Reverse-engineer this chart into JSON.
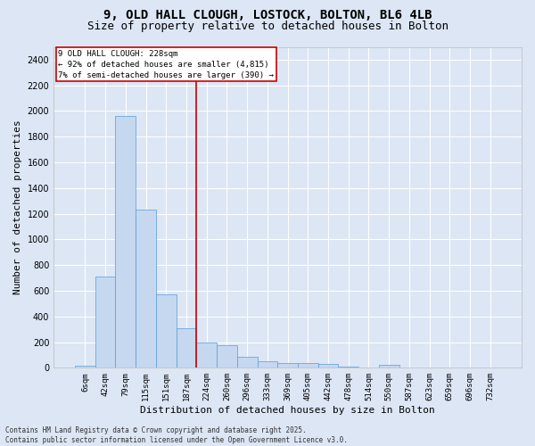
{
  "title_line1": "9, OLD HALL CLOUGH, LOSTOCK, BOLTON, BL6 4LB",
  "title_line2": "Size of property relative to detached houses in Bolton",
  "xlabel": "Distribution of detached houses by size in Bolton",
  "ylabel": "Number of detached properties",
  "bar_color": "#c5d8f0",
  "bar_edge_color": "#5b9bd5",
  "background_color": "#dce6f5",
  "grid_color": "#ffffff",
  "annotation_text": "9 OLD HALL CLOUGH: 228sqm\n← 92% of detached houses are smaller (4,815)\n7% of semi-detached houses are larger (390) →",
  "annotation_box_color": "#ffffff",
  "annotation_box_edge": "#cc0000",
  "vline_color": "#cc0000",
  "categories": [
    "6sqm",
    "42sqm",
    "79sqm",
    "115sqm",
    "151sqm",
    "187sqm",
    "224sqm",
    "260sqm",
    "296sqm",
    "333sqm",
    "369sqm",
    "405sqm",
    "442sqm",
    "478sqm",
    "514sqm",
    "550sqm",
    "587sqm",
    "623sqm",
    "659sqm",
    "696sqm",
    "732sqm"
  ],
  "values": [
    15,
    710,
    1960,
    1235,
    575,
    305,
    200,
    175,
    85,
    50,
    40,
    35,
    30,
    10,
    5,
    20,
    5,
    3,
    2,
    2,
    2
  ],
  "ylim": [
    0,
    2500
  ],
  "yticks": [
    0,
    200,
    400,
    600,
    800,
    1000,
    1200,
    1400,
    1600,
    1800,
    2000,
    2200,
    2400
  ],
  "footer_text": "Contains HM Land Registry data © Crown copyright and database right 2025.\nContains public sector information licensed under the Open Government Licence v3.0.",
  "vline_bar_index": 6,
  "title_fontsize": 10,
  "subtitle_fontsize": 9,
  "tick_fontsize": 6.5,
  "label_fontsize": 8,
  "footer_fontsize": 5.5
}
